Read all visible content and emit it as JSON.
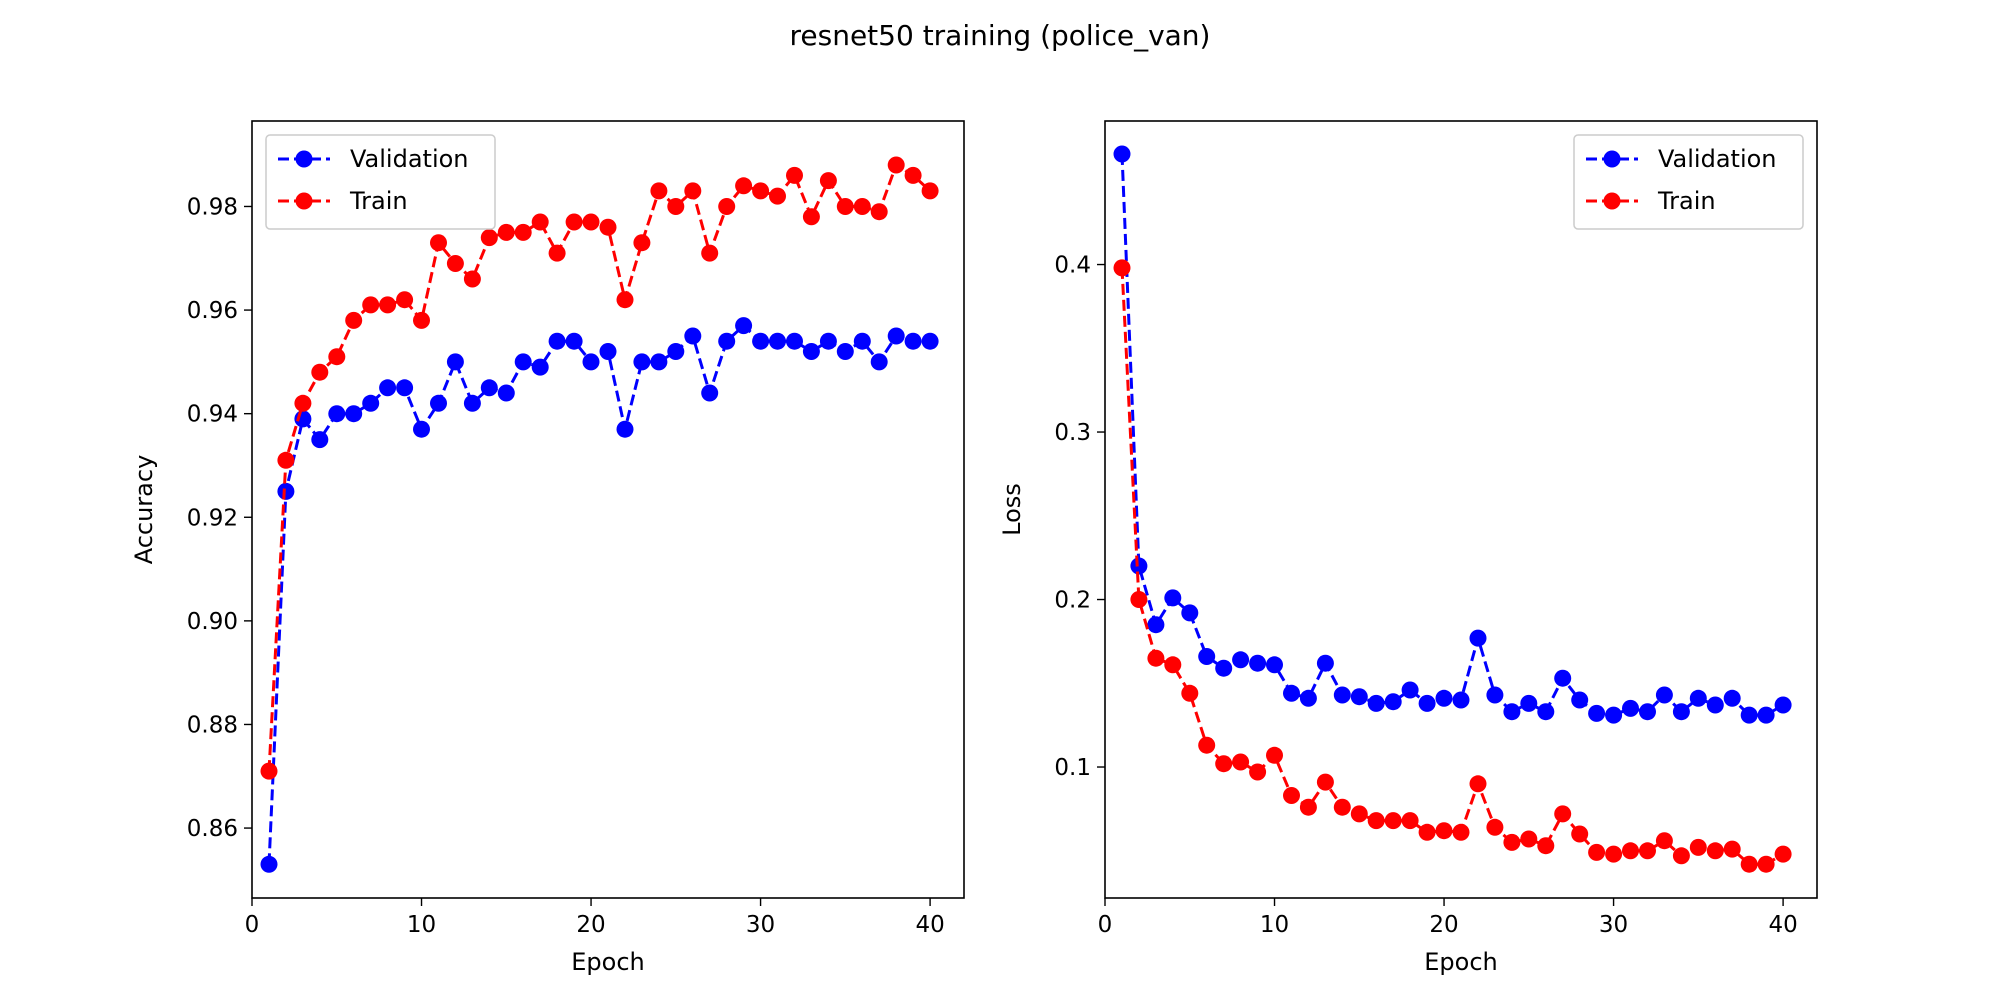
{
  "figure": {
    "title": "resnet50 training (police_van)"
  },
  "colors": {
    "validation": "#0000ff",
    "train": "#ff0000",
    "axes": "#000000",
    "legend_border": "#cccccc",
    "background": "#ffffff"
  },
  "chart_data": [
    {
      "type": "line",
      "name": "accuracy",
      "title": "",
      "xlabel": "Epoch",
      "ylabel": "Accuracy",
      "xlim": [
        0,
        42
      ],
      "ylim": [
        0.8465,
        0.9965
      ],
      "xticks": [
        0,
        10,
        20,
        30,
        40
      ],
      "xtick_labels": [
        "0",
        "10",
        "20",
        "30",
        "40"
      ],
      "yticks": [
        0.86,
        0.88,
        0.9,
        0.92,
        0.94,
        0.96,
        0.98
      ],
      "ytick_labels": [
        "0.86",
        "0.88",
        "0.90",
        "0.92",
        "0.94",
        "0.96",
        "0.98"
      ],
      "legend": "top-left",
      "grid": false,
      "x": [
        1,
        2,
        3,
        4,
        5,
        6,
        7,
        8,
        9,
        10,
        11,
        12,
        13,
        14,
        15,
        16,
        17,
        18,
        19,
        20,
        21,
        22,
        23,
        24,
        25,
        26,
        27,
        28,
        29,
        30,
        31,
        32,
        33,
        34,
        35,
        36,
        37,
        38,
        39,
        40
      ],
      "series": [
        {
          "name": "Validation",
          "color": "#0000ff",
          "style": "dashed-circle",
          "values": [
            0.853,
            0.925,
            0.939,
            0.935,
            0.94,
            0.94,
            0.942,
            0.945,
            0.945,
            0.937,
            0.942,
            0.95,
            0.942,
            0.945,
            0.944,
            0.95,
            0.949,
            0.954,
            0.954,
            0.95,
            0.952,
            0.937,
            0.95,
            0.95,
            0.952,
            0.955,
            0.944,
            0.954,
            0.957,
            0.954,
            0.954,
            0.954,
            0.952,
            0.954,
            0.952,
            0.954,
            0.95,
            0.955,
            0.954,
            0.954
          ]
        },
        {
          "name": "Train",
          "color": "#ff0000",
          "style": "dashed-circle",
          "values": [
            0.871,
            0.931,
            0.942,
            0.948,
            0.951,
            0.958,
            0.961,
            0.961,
            0.962,
            0.958,
            0.973,
            0.969,
            0.966,
            0.974,
            0.975,
            0.975,
            0.977,
            0.971,
            0.977,
            0.977,
            0.976,
            0.962,
            0.973,
            0.983,
            0.98,
            0.983,
            0.971,
            0.98,
            0.984,
            0.983,
            0.982,
            0.986,
            0.978,
            0.985,
            0.98,
            0.98,
            0.979,
            0.988,
            0.986,
            0.983
          ]
        }
      ]
    },
    {
      "type": "line",
      "name": "loss",
      "title": "",
      "xlabel": "Epoch",
      "ylabel": "Loss",
      "xlim": [
        0,
        42
      ],
      "ylim": [
        0.0218,
        0.4857
      ],
      "xticks": [
        0,
        10,
        20,
        30,
        40
      ],
      "xtick_labels": [
        "0",
        "10",
        "20",
        "30",
        "40"
      ],
      "yticks": [
        0.1,
        0.2,
        0.3,
        0.4
      ],
      "ytick_labels": [
        "0.1",
        "0.2",
        "0.3",
        "0.4"
      ],
      "legend": "top-right",
      "grid": false,
      "x": [
        1,
        2,
        3,
        4,
        5,
        6,
        7,
        8,
        9,
        10,
        11,
        12,
        13,
        14,
        15,
        16,
        17,
        18,
        19,
        20,
        21,
        22,
        23,
        24,
        25,
        26,
        27,
        28,
        29,
        30,
        31,
        32,
        33,
        34,
        35,
        36,
        37,
        38,
        39,
        40
      ],
      "series": [
        {
          "name": "Validation",
          "color": "#0000ff",
          "style": "dashed-circle",
          "values": [
            0.466,
            0.22,
            0.185,
            0.201,
            0.192,
            0.166,
            0.159,
            0.164,
            0.162,
            0.161,
            0.144,
            0.141,
            0.162,
            0.143,
            0.142,
            0.138,
            0.139,
            0.146,
            0.138,
            0.141,
            0.14,
            0.177,
            0.143,
            0.133,
            0.138,
            0.133,
            0.153,
            0.14,
            0.132,
            0.131,
            0.135,
            0.133,
            0.143,
            0.133,
            0.141,
            0.137,
            0.141,
            0.131,
            0.131,
            0.137
          ]
        },
        {
          "name": "Train",
          "color": "#ff0000",
          "style": "dashed-circle",
          "values": [
            0.398,
            0.2,
            0.165,
            0.161,
            0.144,
            0.113,
            0.102,
            0.103,
            0.097,
            0.107,
            0.083,
            0.076,
            0.091,
            0.076,
            0.072,
            0.068,
            0.068,
            0.068,
            0.061,
            0.062,
            0.061,
            0.09,
            0.064,
            0.055,
            0.057,
            0.053,
            0.072,
            0.06,
            0.049,
            0.048,
            0.05,
            0.05,
            0.056,
            0.047,
            0.052,
            0.05,
            0.051,
            0.042,
            0.042,
            0.048
          ]
        }
      ]
    }
  ]
}
